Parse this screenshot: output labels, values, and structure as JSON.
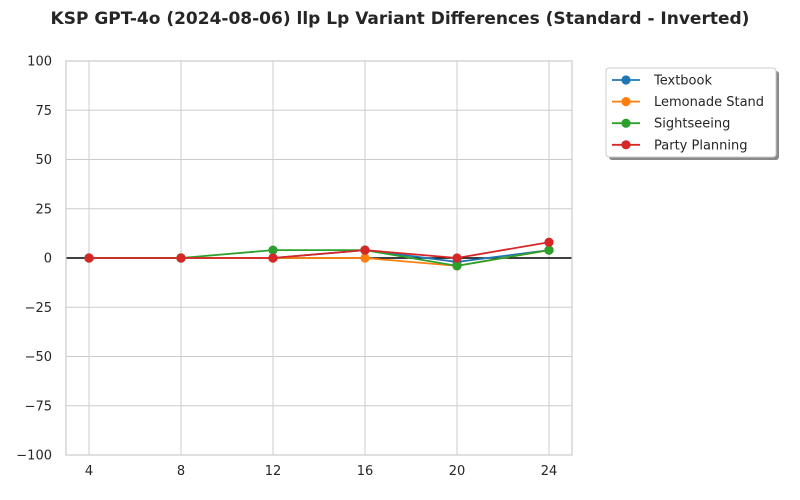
{
  "chart_data": {
    "type": "line",
    "title": "KSP GPT-4o (2024-08-06) llp Lp Variant Differences (Standard - Inverted)",
    "xlabel": "",
    "ylabel": "",
    "x": [
      4,
      8,
      12,
      16,
      20,
      24
    ],
    "xlim": [
      3,
      25
    ],
    "ylim": [
      -100,
      100
    ],
    "xticks": [
      4,
      8,
      12,
      16,
      20,
      24
    ],
    "yticks": [
      -100,
      -75,
      -50,
      -25,
      0,
      25,
      50,
      75,
      100
    ],
    "grid": true,
    "zero_line": true,
    "legend_position": "outside-top-right",
    "series": [
      {
        "name": "Textbook",
        "color": "#1f77b4",
        "values": [
          0,
          0,
          0,
          4,
          -2,
          4
        ]
      },
      {
        "name": "Lemonade Stand",
        "color": "#ff7f0e",
        "values": [
          0,
          0,
          0,
          0,
          -4,
          4
        ]
      },
      {
        "name": "Sightseeing",
        "color": "#2ca02c",
        "values": [
          0,
          0,
          4,
          4,
          -4,
          4
        ]
      },
      {
        "name": "Party Planning",
        "color": "#d62728",
        "values": [
          0,
          0,
          0,
          4,
          0,
          8
        ]
      }
    ]
  }
}
